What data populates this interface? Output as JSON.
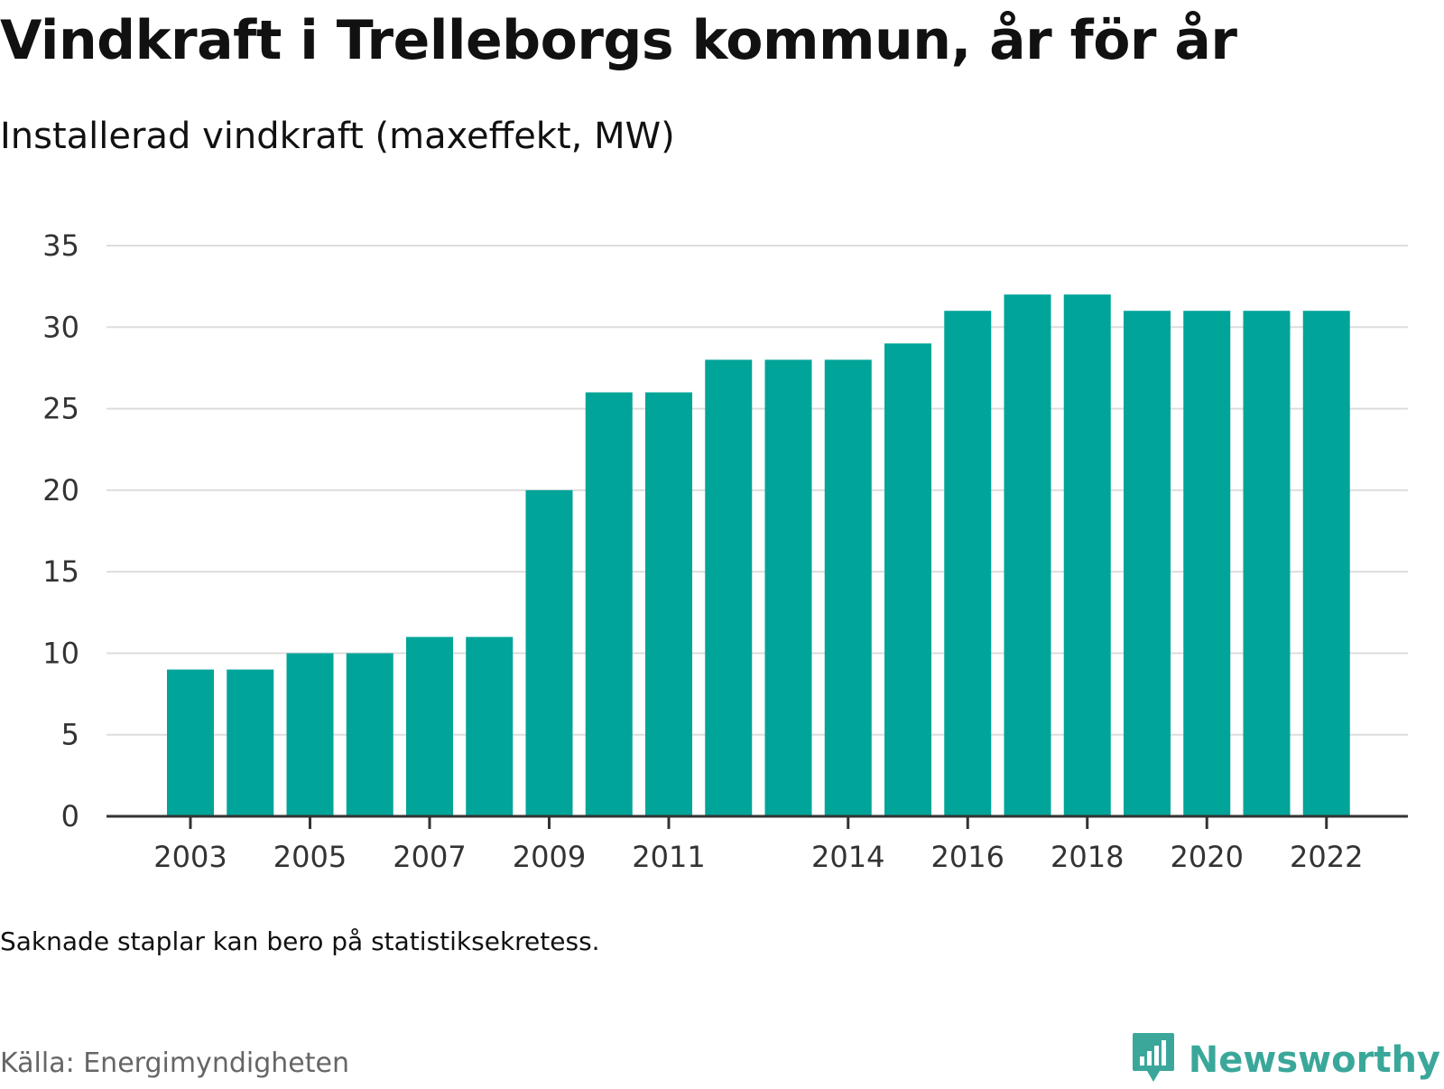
{
  "header": {
    "title": "Vindkraft i Trelleborgs kommun, år för år",
    "subtitle": "Installerad vindkraft (maxeffekt, MW)"
  },
  "footer": {
    "note": "Saknade staplar kan bero på statistiksekretess.",
    "source": "Källa: Energimyndigheten",
    "brand": "Newsworthy",
    "brand_icon": "bar-chart-speech-bubble-icon"
  },
  "colors": {
    "bar": "#00a499",
    "grid": "#dddddd",
    "axis": "#333333",
    "brand": "#3aa79a"
  },
  "chart_data": {
    "type": "bar",
    "title": "Vindkraft i Trelleborgs kommun, år för år",
    "subtitle": "Installerad vindkraft (maxeffekt, MW)",
    "xlabel": "",
    "ylabel": "",
    "categories": [
      "2003",
      "2004",
      "2005",
      "2006",
      "2007",
      "2008",
      "2009",
      "2010",
      "2011",
      "2012",
      "2013",
      "2014",
      "2015",
      "2016",
      "2017",
      "2018",
      "2019",
      "2020",
      "2021",
      "2022"
    ],
    "values": [
      9,
      9,
      10,
      10,
      11,
      11,
      20,
      26,
      26,
      28,
      28,
      28,
      29,
      31,
      32,
      32,
      31,
      31,
      31,
      31
    ],
    "x_tick_labels": [
      "2003",
      "2005",
      "2007",
      "2009",
      "2011",
      "2014",
      "2016",
      "2018",
      "2020",
      "2022"
    ],
    "y_ticks": [
      0,
      5,
      10,
      15,
      20,
      25,
      30,
      35
    ],
    "ylim": [
      0,
      35
    ],
    "grid": true,
    "legend": "none"
  }
}
